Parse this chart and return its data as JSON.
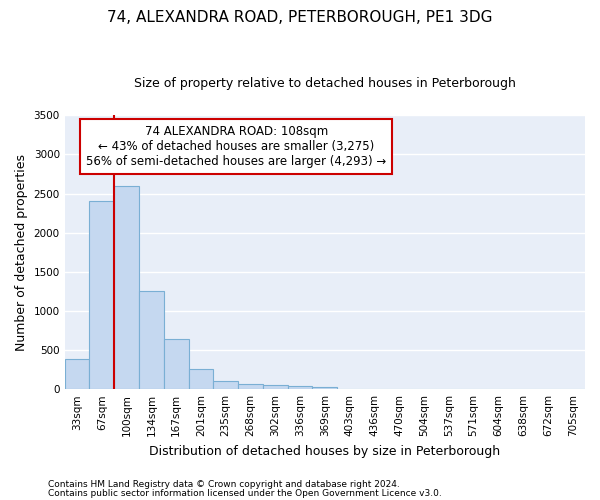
{
  "title": "74, ALEXANDRA ROAD, PETERBOROUGH, PE1 3DG",
  "subtitle": "Size of property relative to detached houses in Peterborough",
  "xlabel": "Distribution of detached houses by size in Peterborough",
  "ylabel": "Number of detached properties",
  "footnote1": "Contains HM Land Registry data © Crown copyright and database right 2024.",
  "footnote2": "Contains public sector information licensed under the Open Government Licence v3.0.",
  "categories": [
    "33sqm",
    "67sqm",
    "100sqm",
    "134sqm",
    "167sqm",
    "201sqm",
    "235sqm",
    "268sqm",
    "302sqm",
    "336sqm",
    "369sqm",
    "403sqm",
    "436sqm",
    "470sqm",
    "504sqm",
    "537sqm",
    "571sqm",
    "604sqm",
    "638sqm",
    "672sqm",
    "705sqm"
  ],
  "values": [
    390,
    2400,
    2600,
    1250,
    640,
    255,
    100,
    65,
    55,
    40,
    30,
    0,
    0,
    0,
    0,
    0,
    0,
    0,
    0,
    0,
    0
  ],
  "bar_color": "#c5d8f0",
  "bar_edge_color": "#7aafd4",
  "bg_color": "#e8eef8",
  "grid_color": "#ffffff",
  "vline_color": "#cc0000",
  "vline_x_index": 2,
  "annotation_text": "74 ALEXANDRA ROAD: 108sqm\n← 43% of detached houses are smaller (3,275)\n56% of semi-detached houses are larger (4,293) →",
  "annotation_box_color": "#cc0000",
  "ylim": [
    0,
    3500
  ],
  "yticks": [
    0,
    500,
    1000,
    1500,
    2000,
    2500,
    3000,
    3500
  ],
  "title_fontsize": 11,
  "subtitle_fontsize": 9,
  "label_fontsize": 9,
  "tick_fontsize": 7.5,
  "annot_fontsize": 8.5
}
